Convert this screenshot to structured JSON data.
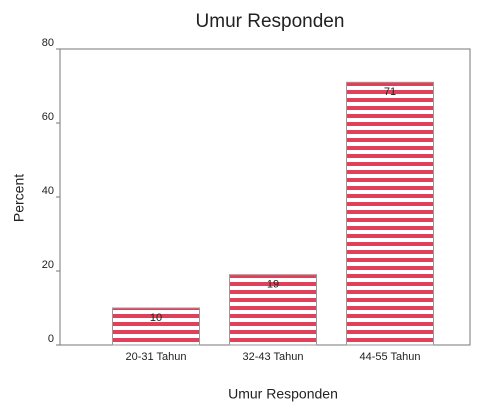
{
  "chart_data": {
    "type": "bar",
    "title": "Umur Responden",
    "x_label": "Umur Responden",
    "y_label": "Percent",
    "categories": [
      "20-31 Tahun",
      "32-43 Tahun",
      "44-55 Tahun"
    ],
    "values": [
      10,
      19,
      71
    ],
    "color": "#e0405a",
    "ylim": [
      0,
      80
    ],
    "yticks": [
      0,
      20,
      40,
      60,
      80
    ],
    "grid": false
  }
}
